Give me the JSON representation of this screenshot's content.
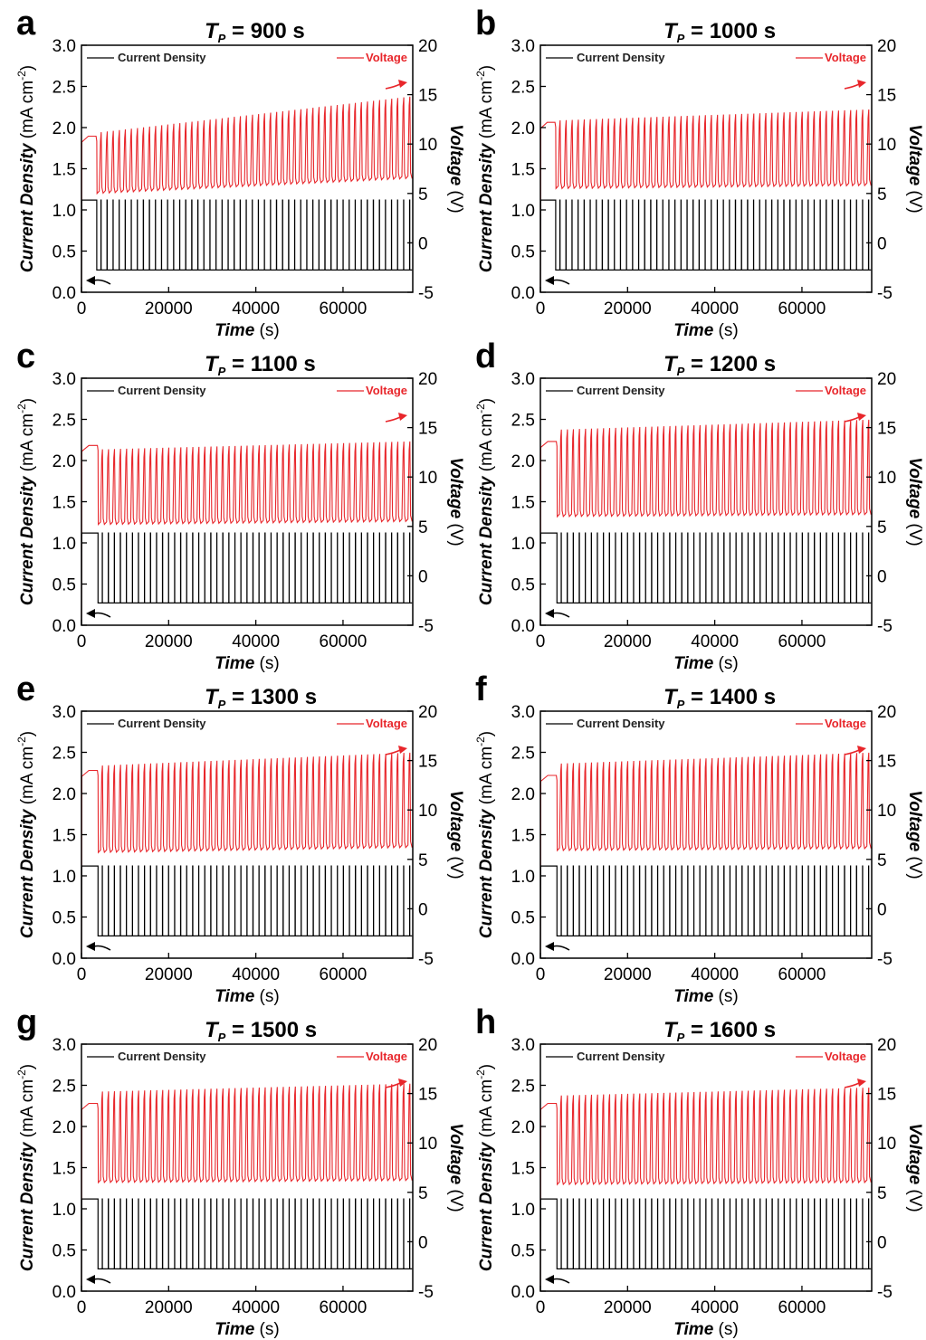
{
  "chart_data": [
    {
      "panel": "a",
      "type": "line",
      "title_var": "T",
      "title_sub": "P",
      "title_value": " = 900 s",
      "xlabel_main": "Time",
      "xlabel_unit": " (s)",
      "ylabel_left_main": "Current Density",
      "ylabel_left_unit": " (mA cm",
      "ylabel_left_exp": "-2",
      "ylabel_left_close": ")",
      "ylabel_right_main": "Voltage",
      "ylabel_right_unit": " (V)",
      "xlim": [
        0,
        76000
      ],
      "xticks": [
        "0",
        "20000",
        "40000",
        "60000"
      ],
      "ylim_left": [
        0,
        3
      ],
      "yticks_left": [
        "0.0",
        "0.5",
        "1.0",
        "1.5",
        "2.0",
        "2.5",
        "3.0"
      ],
      "ylim_right": [
        -5,
        20
      ],
      "yticks_right": [
        "-5",
        "0",
        "5",
        "10",
        "15",
        "20"
      ],
      "series": [
        {
          "name": "Current Density",
          "color": "#000000",
          "axis": "left",
          "high": 1.12,
          "low": 0.27,
          "pulse_start": 3500,
          "pulse_count": 52
        },
        {
          "name": "Voltage",
          "color": "#e8262b",
          "axis": "right",
          "initial": 10.8,
          "peak_start": 11.2,
          "peak_end": 14.8,
          "base_start": 5.0,
          "base_end": 6.5,
          "cycles": 52
        }
      ]
    },
    {
      "panel": "b",
      "type": "line",
      "title_var": "T",
      "title_sub": "P",
      "title_value": " = 1000 s",
      "xlabel_main": "Time",
      "xlabel_unit": " (s)",
      "ylabel_left_main": "Current Density",
      "ylabel_left_unit": " (mA cm",
      "ylabel_left_exp": "-2",
      "ylabel_left_close": ")",
      "ylabel_right_main": "Voltage",
      "ylabel_right_unit": " (V)",
      "xlim": [
        0,
        76000
      ],
      "xticks": [
        "0",
        "20000",
        "40000",
        "60000"
      ],
      "ylim_left": [
        0,
        3
      ],
      "yticks_left": [
        "0.0",
        "0.5",
        "1.0",
        "1.5",
        "2.0",
        "2.5",
        "3.0"
      ],
      "ylim_right": [
        -5,
        20
      ],
      "yticks_right": [
        "-5",
        "0",
        "5",
        "10",
        "15",
        "20"
      ],
      "series": [
        {
          "name": "Current Density",
          "color": "#000000",
          "axis": "left",
          "high": 1.12,
          "low": 0.27,
          "pulse_start": 3500,
          "pulse_count": 52
        },
        {
          "name": "Voltage",
          "color": "#e8262b",
          "axis": "right",
          "initial": 12.2,
          "peak_start": 12.4,
          "peak_end": 13.5,
          "base_start": 5.5,
          "base_end": 5.8,
          "cycles": 52
        }
      ]
    },
    {
      "panel": "c",
      "type": "line",
      "title_var": "T",
      "title_sub": "P",
      "title_value": " = 1100 s",
      "xlabel_main": "Time",
      "xlabel_unit": " (s)",
      "ylabel_left_main": "Current Density",
      "ylabel_left_unit": " (mA cm",
      "ylabel_left_exp": "-2",
      "ylabel_left_close": ")",
      "ylabel_right_main": "Voltage",
      "ylabel_right_unit": " (V)",
      "xlim": [
        0,
        76000
      ],
      "xticks": [
        "0",
        "20000",
        "40000",
        "60000"
      ],
      "ylim_left": [
        0,
        3
      ],
      "yticks_left": [
        "0.0",
        "0.5",
        "1.0",
        "1.5",
        "2.0",
        "2.5",
        "3.0"
      ],
      "ylim_right": [
        -5,
        20
      ],
      "yticks_right": [
        "-5",
        "0",
        "5",
        "10",
        "15",
        "20"
      ],
      "series": [
        {
          "name": "Current Density",
          "color": "#000000",
          "axis": "left",
          "high": 1.12,
          "low": 0.27,
          "pulse_start": 3800,
          "pulse_count": 52
        },
        {
          "name": "Voltage",
          "color": "#e8262b",
          "axis": "right",
          "initial": 13.2,
          "peak_start": 12.8,
          "peak_end": 13.6,
          "base_start": 5.2,
          "base_end": 5.5,
          "cycles": 52
        }
      ]
    },
    {
      "panel": "d",
      "type": "line",
      "title_var": "T",
      "title_sub": "P",
      "title_value": " = 1200 s",
      "xlabel_main": "Time",
      "xlabel_unit": " (s)",
      "ylabel_left_main": "Current Density",
      "ylabel_left_unit": " (mA cm",
      "ylabel_left_exp": "-2",
      "ylabel_left_close": ")",
      "ylabel_right_main": "Voltage",
      "ylabel_right_unit": " (V)",
      "xlim": [
        0,
        76000
      ],
      "xticks": [
        "0",
        "20000",
        "40000",
        "60000"
      ],
      "ylim_left": [
        0,
        3
      ],
      "yticks_left": [
        "0.0",
        "0.5",
        "1.0",
        "1.5",
        "2.0",
        "2.5",
        "3.0"
      ],
      "ylim_right": [
        -5,
        20
      ],
      "yticks_right": [
        "-5",
        "0",
        "5",
        "10",
        "15",
        "20"
      ],
      "series": [
        {
          "name": "Current Density",
          "color": "#000000",
          "axis": "left",
          "high": 1.12,
          "low": 0.27,
          "pulse_start": 3800,
          "pulse_count": 52
        },
        {
          "name": "Voltage",
          "color": "#e8262b",
          "axis": "right",
          "initial": 13.6,
          "peak_start": 14.8,
          "peak_end": 15.8,
          "base_start": 6.0,
          "base_end": 6.2,
          "cycles": 52
        }
      ]
    },
    {
      "panel": "e",
      "type": "line",
      "title_var": "T",
      "title_sub": "P",
      "title_value": " = 1300 s",
      "xlabel_main": "Time",
      "xlabel_unit": " (s)",
      "ylabel_left_main": "Current Density",
      "ylabel_left_unit": " (mA cm",
      "ylabel_left_exp": "-2",
      "ylabel_left_close": ")",
      "ylabel_right_main": "Voltage",
      "ylabel_right_unit": " (V)",
      "xlim": [
        0,
        76000
      ],
      "xticks": [
        "0",
        "20000",
        "40000",
        "60000"
      ],
      "ylim_left": [
        0,
        3
      ],
      "yticks_left": [
        "0.0",
        "0.5",
        "1.0",
        "1.5",
        "2.0",
        "2.5",
        "3.0"
      ],
      "ylim_right": [
        -5,
        20
      ],
      "yticks_right": [
        "-5",
        "0",
        "5",
        "10",
        "15",
        "20"
      ],
      "series": [
        {
          "name": "Current Density",
          "color": "#000000",
          "axis": "left",
          "high": 1.12,
          "low": 0.27,
          "pulse_start": 3800,
          "pulse_count": 52
        },
        {
          "name": "Voltage",
          "color": "#e8262b",
          "axis": "right",
          "initial": 14.0,
          "peak_start": 14.5,
          "peak_end": 15.8,
          "base_start": 5.7,
          "base_end": 6.2,
          "cycles": 52
        }
      ]
    },
    {
      "panel": "f",
      "type": "line",
      "title_var": "T",
      "title_sub": "P",
      "title_value": " = 1400 s",
      "xlabel_main": "Time",
      "xlabel_unit": " (s)",
      "ylabel_left_main": "Current Density",
      "ylabel_left_unit": " (mA cm",
      "ylabel_left_exp": "-2",
      "ylabel_left_close": ")",
      "ylabel_right_main": "Voltage",
      "ylabel_right_unit": " (V)",
      "xlim": [
        0,
        76000
      ],
      "xticks": [
        "0",
        "20000",
        "40000",
        "60000"
      ],
      "ylim_left": [
        0,
        3
      ],
      "yticks_left": [
        "0.0",
        "0.5",
        "1.0",
        "1.5",
        "2.0",
        "2.5",
        "3.0"
      ],
      "ylim_right": [
        -5,
        20
      ],
      "yticks_right": [
        "-5",
        "0",
        "5",
        "10",
        "15",
        "20"
      ],
      "series": [
        {
          "name": "Current Density",
          "color": "#000000",
          "axis": "left",
          "high": 1.12,
          "low": 0.27,
          "pulse_start": 3800,
          "pulse_count": 52
        },
        {
          "name": "Voltage",
          "color": "#e8262b",
          "axis": "right",
          "initial": 13.5,
          "peak_start": 14.7,
          "peak_end": 15.8,
          "base_start": 5.9,
          "base_end": 6.1,
          "cycles": 52
        }
      ]
    },
    {
      "panel": "g",
      "type": "line",
      "title_var": "T",
      "title_sub": "P",
      "title_value": " = 1500 s",
      "xlabel_main": "Time",
      "xlabel_unit": " (s)",
      "ylabel_left_main": "Current Density",
      "ylabel_left_unit": " (mA cm",
      "ylabel_left_exp": "-2",
      "ylabel_left_close": ")",
      "ylabel_right_main": "Voltage",
      "ylabel_right_unit": " (V)",
      "xlim": [
        0,
        76000
      ],
      "xticks": [
        "0",
        "20000",
        "40000",
        "60000"
      ],
      "ylim_left": [
        0,
        3
      ],
      "yticks_left": [
        "0.0",
        "0.5",
        "1.0",
        "1.5",
        "2.0",
        "2.5",
        "3.0"
      ],
      "ylim_right": [
        -5,
        20
      ],
      "yticks_right": [
        "-5",
        "0",
        "5",
        "10",
        "15",
        "20"
      ],
      "series": [
        {
          "name": "Current Density",
          "color": "#000000",
          "axis": "left",
          "high": 1.12,
          "low": 0.27,
          "pulse_start": 3800,
          "pulse_count": 52
        },
        {
          "name": "Voltage",
          "color": "#e8262b",
          "axis": "right",
          "initial": 14.0,
          "peak_start": 15.2,
          "peak_end": 16.0,
          "base_start": 6.0,
          "base_end": 6.2,
          "cycles": 52
        }
      ]
    },
    {
      "panel": "h",
      "type": "line",
      "title_var": "T",
      "title_sub": "P",
      "title_value": " = 1600 s",
      "xlabel_main": "Time",
      "xlabel_unit": " (s)",
      "ylabel_left_main": "Current Density",
      "ylabel_left_unit": " (mA cm",
      "ylabel_left_exp": "-2",
      "ylabel_left_close": ")",
      "ylabel_right_main": "Voltage",
      "ylabel_right_unit": " (V)",
      "xlim": [
        0,
        76000
      ],
      "xticks": [
        "0",
        "20000",
        "40000",
        "60000"
      ],
      "ylim_left": [
        0,
        3
      ],
      "yticks_left": [
        "0.0",
        "0.5",
        "1.0",
        "1.5",
        "2.0",
        "2.5",
        "3.0"
      ],
      "ylim_right": [
        -5,
        20
      ],
      "yticks_right": [
        "-5",
        "0",
        "5",
        "10",
        "15",
        "20"
      ],
      "series": [
        {
          "name": "Current Density",
          "color": "#000000",
          "axis": "left",
          "high": 1.12,
          "low": 0.27,
          "pulse_start": 3800,
          "pulse_count": 52
        },
        {
          "name": "Voltage",
          "color": "#e8262b",
          "axis": "right",
          "initial": 14.0,
          "peak_start": 14.8,
          "peak_end": 15.6,
          "base_start": 5.8,
          "base_end": 6.0,
          "cycles": 52
        }
      ]
    }
  ]
}
